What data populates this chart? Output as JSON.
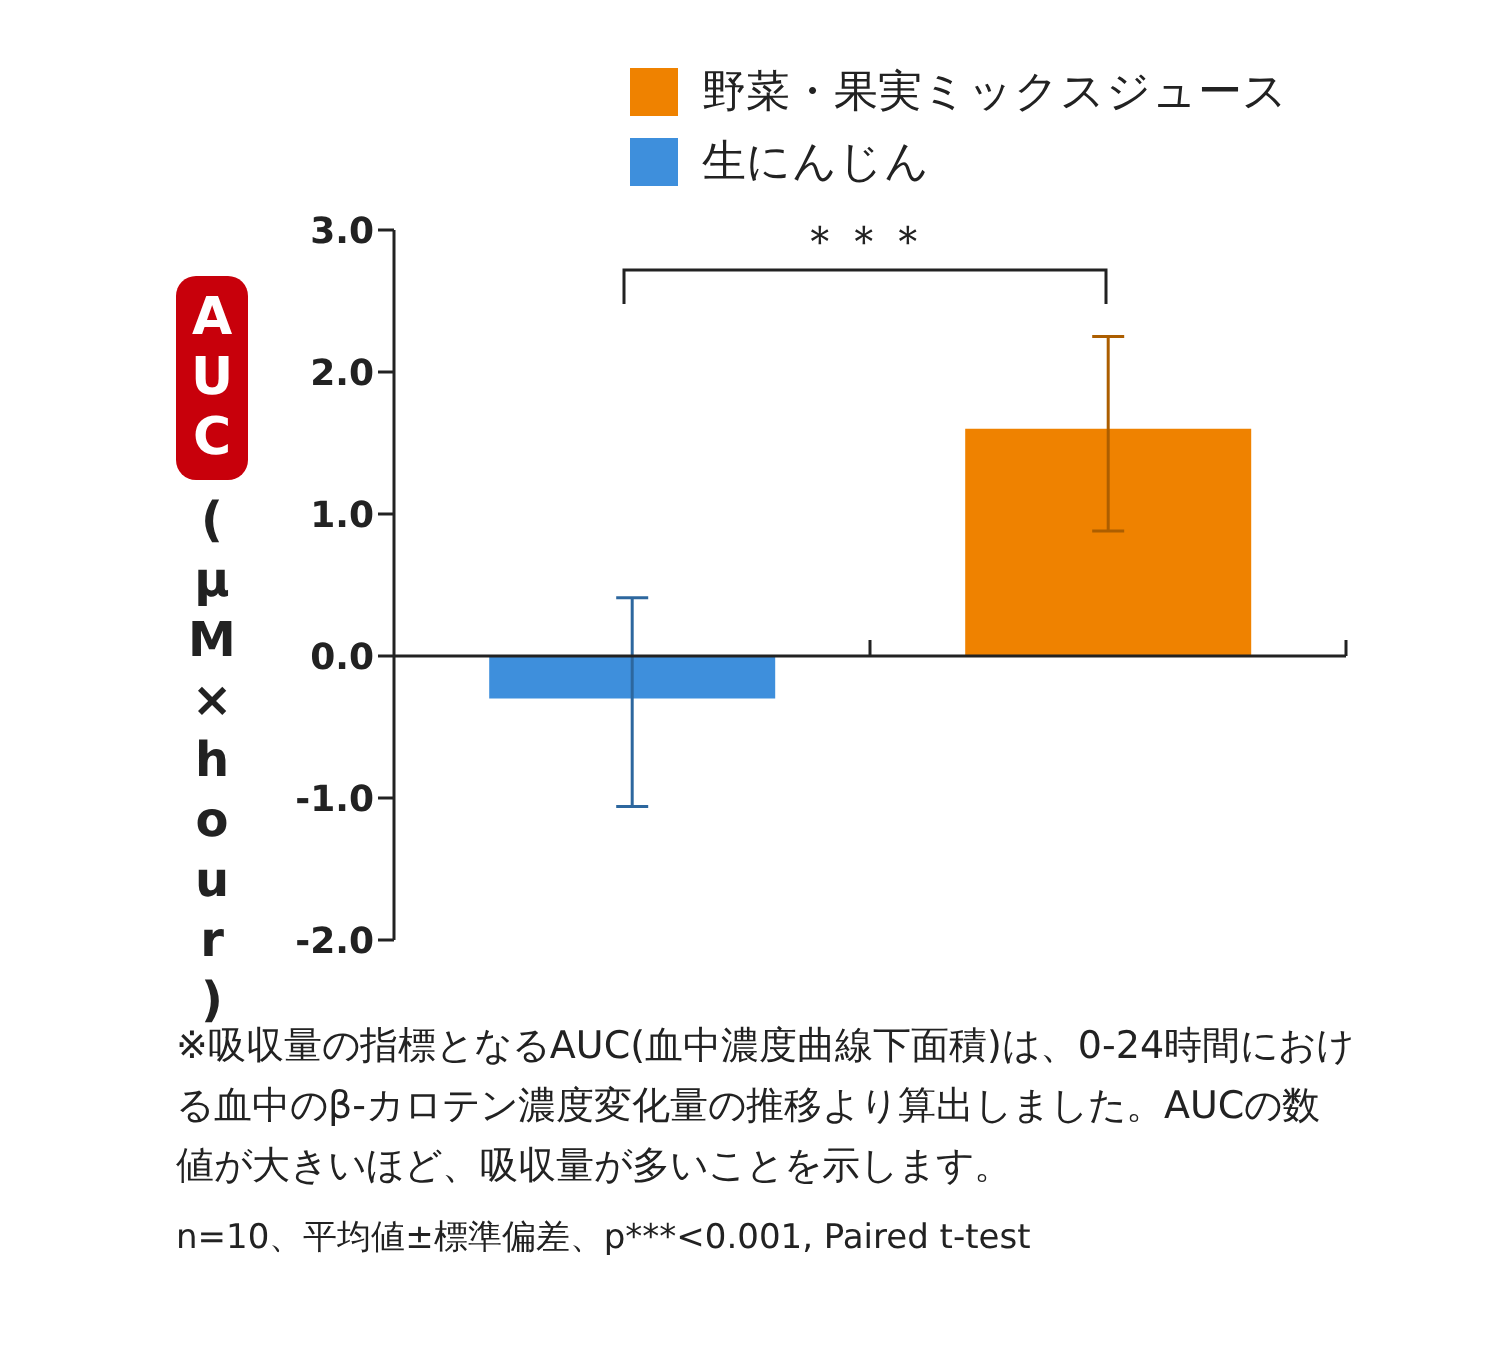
{
  "chart_data": {
    "type": "bar",
    "ylabel": "AUC(μM×hour)",
    "categories": [
      null,
      null
    ],
    "series": [
      {
        "name": "野菜・果実ミックスジュース",
        "color": "#ef8200",
        "values": [
          null,
          1.6
        ],
        "errors": [
          null,
          [
            0.88,
            2.25
          ]
        ]
      },
      {
        "name": "生にんじん",
        "color": "#3e8fdc",
        "values": [
          -0.3,
          null
        ],
        "errors": [
          [
            -1.06,
            0.41
          ],
          null
        ]
      }
    ],
    "ylim": [
      -2,
      3
    ],
    "yticks": [
      {
        "value": -2,
        "label": "-2.0"
      },
      {
        "value": -1,
        "label": "-1.0"
      },
      {
        "value": 0,
        "label": "0.0"
      },
      {
        "value": 1,
        "label": "1.0"
      },
      {
        "value": 2,
        "label": "2.0"
      },
      {
        "value": 3,
        "label": "3.0"
      }
    ],
    "legend": "top",
    "annotations": [
      "＊＊＊",
      "※吸収量の指標となるAUC(血中濃度曲線下面積)は、0-24時間における血中のβ-カロテン濃度変化量の推移より算出しました。AUCの数値が大きいほど、吸収量が多いことを示します。",
      "n=10、平均値±標準偏差、p***<0.001, Paired t-test"
    ]
  }
}
